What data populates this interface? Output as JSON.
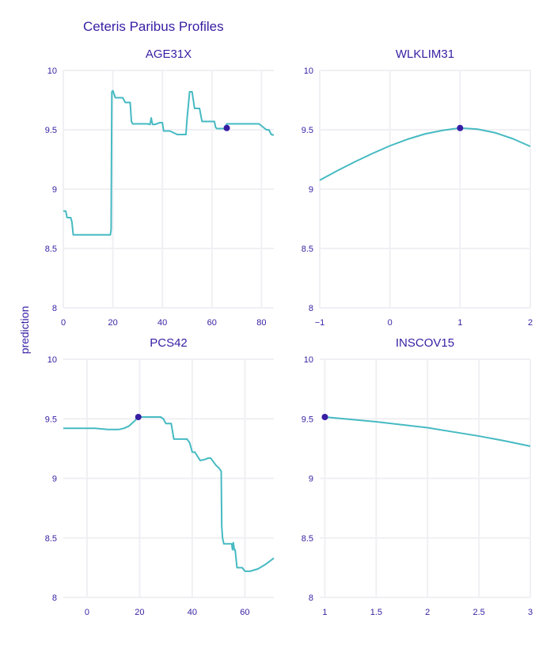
{
  "colors": {
    "line": "#46bac2",
    "point": "#371ea3",
    "text": "#371ea3",
    "grid": "#f0f0f4"
  },
  "chart_data": {
    "type": "line",
    "title": "Ceteris Paribus Profiles",
    "ylabel": "prediction",
    "grid": true,
    "panels": [
      {
        "title": "AGE31X",
        "xlim": [
          0,
          85
        ],
        "ylim": [
          8,
          10
        ],
        "xticks": [
          0,
          20,
          40,
          60,
          80
        ],
        "xtick_labels": [
          "0",
          "20",
          "40",
          "60",
          "80"
        ],
        "yticks": [
          8,
          8.5,
          9,
          9.5,
          10
        ],
        "ytick_labels": [
          "8",
          "8.5",
          "9",
          "9.5",
          "10"
        ],
        "observation": {
          "x": 66,
          "y": 9.515
        },
        "series": [
          {
            "x": [
              0,
              1,
              1.5,
              3,
              3.5,
              4,
              19,
              19.3,
              19.6,
              20,
              21,
              24,
              25,
              27,
              27.5,
              28,
              34,
              35,
              35.5,
              36,
              37,
              39,
              40,
              40.5,
              41,
              43,
              46,
              49.5,
              50,
              51,
              52,
              52.5,
              53,
              55,
              56,
              60,
              61,
              61.5,
              62,
              65,
              66,
              78,
              79,
              82,
              83,
              84,
              85
            ],
            "y": [
              8.815,
              8.815,
              8.76,
              8.76,
              8.72,
              8.615,
              8.615,
              8.66,
              9.82,
              9.83,
              9.77,
              9.77,
              9.73,
              9.73,
              9.57,
              9.55,
              9.55,
              9.545,
              9.6,
              9.545,
              9.545,
              9.56,
              9.56,
              9.49,
              9.49,
              9.49,
              9.46,
              9.46,
              9.6,
              9.82,
              9.82,
              9.75,
              9.68,
              9.68,
              9.57,
              9.57,
              9.57,
              9.52,
              9.51,
              9.51,
              9.55,
              9.55,
              9.55,
              9.5,
              9.5,
              9.46,
              9.455
            ]
          }
        ]
      },
      {
        "title": "WLKLIM31",
        "xlim": [
          -1,
          2
        ],
        "ylim": [
          8,
          10
        ],
        "xticks": [
          -1,
          0,
          1,
          2
        ],
        "xtick_labels": [
          "−1",
          "0",
          "1",
          "2"
        ],
        "yticks": [
          8,
          8.5,
          9,
          9.5,
          10
        ],
        "ytick_labels": [
          "8",
          "8.5",
          "9",
          "9.5",
          "10"
        ],
        "observation": {
          "x": 1,
          "y": 9.515
        },
        "series": [
          {
            "x": [
              -1,
              -0.75,
              -0.5,
              -0.25,
              0,
              0.25,
              0.5,
              0.75,
              1,
              1.25,
              1.5,
              1.75,
              2
            ],
            "y": [
              9.075,
              9.155,
              9.23,
              9.3,
              9.365,
              9.42,
              9.465,
              9.495,
              9.515,
              9.505,
              9.475,
              9.425,
              9.36
            ]
          }
        ]
      },
      {
        "title": "PCS42",
        "xlim": [
          -9,
          71
        ],
        "ylim": [
          8,
          10
        ],
        "xticks": [
          0,
          20,
          40,
          60
        ],
        "xtick_labels": [
          "0",
          "20",
          "40",
          "60"
        ],
        "yticks": [
          8,
          8.5,
          9,
          9.5,
          10
        ],
        "ytick_labels": [
          "8",
          "8.5",
          "9",
          "9.5",
          "10"
        ],
        "observation": {
          "x": 19.5,
          "y": 9.515
        },
        "series": [
          {
            "x": [
              -9,
              0,
              3,
              8,
              12,
              14,
              16,
              18,
              19.5,
              22,
              28,
              29,
              30,
              32,
              33,
              38,
              39,
              40,
              41,
              43,
              45,
              46,
              47,
              49,
              50,
              51,
              51.2,
              51.5,
              52,
              55,
              55.3,
              55.6,
              56,
              56.3,
              57,
              58,
              59,
              60,
              61,
              62,
              65,
              68,
              71
            ],
            "y": [
              9.42,
              9.42,
              9.42,
              9.41,
              9.41,
              9.42,
              9.44,
              9.48,
              9.515,
              9.515,
              9.515,
              9.5,
              9.46,
              9.46,
              9.33,
              9.33,
              9.3,
              9.22,
              9.22,
              9.15,
              9.16,
              9.17,
              9.17,
              9.11,
              9.09,
              9.06,
              8.6,
              8.5,
              8.45,
              8.45,
              8.4,
              8.46,
              8.4,
              8.4,
              8.25,
              8.25,
              8.25,
              8.22,
              8.22,
              8.22,
              8.24,
              8.28,
              8.33
            ]
          }
        ]
      },
      {
        "title": "INSCOV15",
        "xlim": [
          0.95,
          3
        ],
        "ylim": [
          8,
          10
        ],
        "xticks": [
          1,
          1.5,
          2,
          2.5,
          3
        ],
        "xtick_labels": [
          "1",
          "1.5",
          "2",
          "2.5",
          "3"
        ],
        "yticks": [
          8,
          8.5,
          9,
          9.5,
          10
        ],
        "ytick_labels": [
          "8",
          "8.5",
          "9",
          "9.5",
          "10"
        ],
        "observation": {
          "x": 1,
          "y": 9.515
        },
        "series": [
          {
            "x": [
              1,
              1.25,
              1.5,
              1.75,
              2,
              2.25,
              2.5,
              2.75,
              3
            ],
            "y": [
              9.515,
              9.495,
              9.475,
              9.45,
              9.425,
              9.39,
              9.355,
              9.315,
              9.27
            ]
          }
        ]
      }
    ]
  }
}
